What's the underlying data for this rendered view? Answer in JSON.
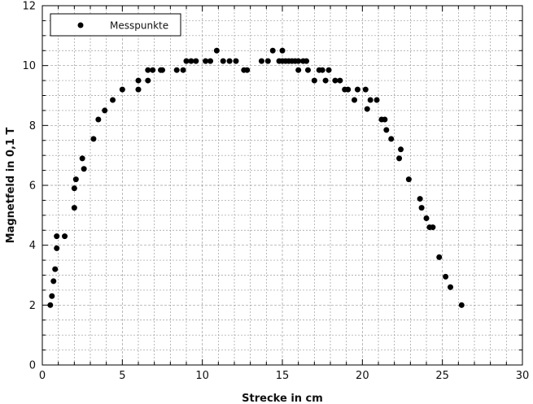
{
  "chart_data": {
    "type": "scatter",
    "xlabel": "Strecke in cm",
    "ylabel": "Magnetfeld in 0,1 T",
    "xlim": [
      0,
      30
    ],
    "ylim": [
      0,
      12
    ],
    "x_ticks": [
      "0",
      "5",
      "10",
      "15",
      "20",
      "25",
      "30"
    ],
    "y_ticks": [
      "0",
      "2",
      "4",
      "6",
      "8",
      "10",
      "12"
    ],
    "grid": true,
    "legend_position": "top-left",
    "colors": {
      "marker": "#000000",
      "grid": "#9a9a9a",
      "axis": "#000000"
    },
    "series": [
      {
        "name": "Messpunkte",
        "points": [
          [
            0.5,
            2.0
          ],
          [
            0.6,
            2.3
          ],
          [
            0.7,
            2.8
          ],
          [
            0.8,
            3.2
          ],
          [
            0.9,
            3.9
          ],
          [
            0.9,
            4.3
          ],
          [
            1.4,
            4.3
          ],
          [
            2.0,
            5.25
          ],
          [
            2.0,
            5.9
          ],
          [
            2.1,
            6.2
          ],
          [
            2.5,
            6.9
          ],
          [
            2.6,
            6.55
          ],
          [
            3.2,
            7.55
          ],
          [
            3.5,
            8.2
          ],
          [
            3.9,
            8.5
          ],
          [
            4.4,
            8.85
          ],
          [
            5.0,
            9.2
          ],
          [
            6.0,
            9.2
          ],
          [
            6.0,
            9.5
          ],
          [
            6.6,
            9.5
          ],
          [
            6.6,
            9.85
          ],
          [
            6.9,
            9.85
          ],
          [
            7.4,
            9.85
          ],
          [
            7.5,
            9.85
          ],
          [
            8.4,
            9.85
          ],
          [
            8.8,
            9.85
          ],
          [
            9.0,
            10.15
          ],
          [
            9.3,
            10.15
          ],
          [
            9.6,
            10.15
          ],
          [
            10.2,
            10.15
          ],
          [
            10.5,
            10.15
          ],
          [
            10.9,
            10.5
          ],
          [
            11.3,
            10.15
          ],
          [
            11.7,
            10.15
          ],
          [
            12.1,
            10.15
          ],
          [
            12.6,
            9.85
          ],
          [
            12.8,
            9.85
          ],
          [
            13.7,
            10.15
          ],
          [
            14.1,
            10.15
          ],
          [
            14.4,
            10.5
          ],
          [
            14.8,
            10.15
          ],
          [
            15.0,
            10.5
          ],
          [
            15.0,
            10.15
          ],
          [
            15.2,
            10.15
          ],
          [
            15.4,
            10.15
          ],
          [
            15.6,
            10.15
          ],
          [
            15.8,
            10.15
          ],
          [
            16.0,
            10.15
          ],
          [
            16.0,
            9.85
          ],
          [
            16.3,
            10.15
          ],
          [
            16.5,
            10.15
          ],
          [
            16.6,
            9.85
          ],
          [
            17.0,
            9.5
          ],
          [
            17.3,
            9.85
          ],
          [
            17.5,
            9.85
          ],
          [
            17.7,
            9.5
          ],
          [
            17.9,
            9.85
          ],
          [
            18.3,
            9.5
          ],
          [
            18.6,
            9.5
          ],
          [
            18.9,
            9.2
          ],
          [
            19.1,
            9.2
          ],
          [
            19.5,
            8.85
          ],
          [
            19.7,
            9.2
          ],
          [
            20.2,
            9.2
          ],
          [
            20.3,
            8.55
          ],
          [
            20.5,
            8.85
          ],
          [
            20.9,
            8.85
          ],
          [
            21.2,
            8.2
          ],
          [
            21.4,
            8.2
          ],
          [
            21.5,
            7.85
          ],
          [
            21.8,
            7.55
          ],
          [
            22.3,
            6.9
          ],
          [
            22.4,
            7.2
          ],
          [
            22.9,
            6.2
          ],
          [
            23.6,
            5.55
          ],
          [
            23.7,
            5.25
          ],
          [
            24.0,
            4.9
          ],
          [
            24.2,
            4.6
          ],
          [
            24.4,
            4.6
          ],
          [
            24.8,
            3.6
          ],
          [
            25.2,
            2.95
          ],
          [
            25.5,
            2.6
          ],
          [
            26.2,
            2.0
          ]
        ]
      }
    ]
  }
}
